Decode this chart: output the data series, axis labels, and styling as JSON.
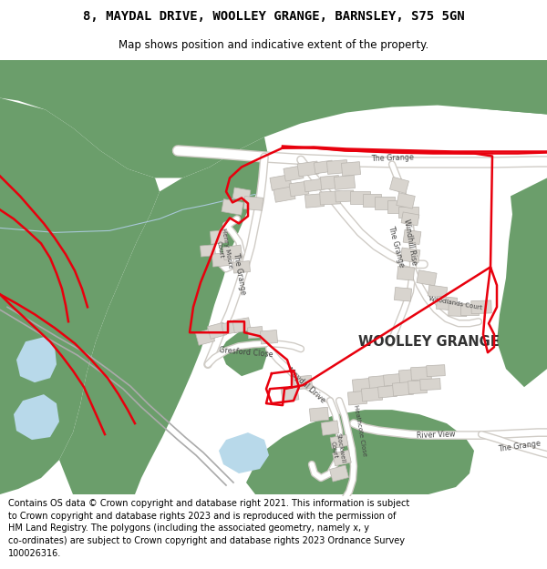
{
  "title_line1": "8, MAYDAL DRIVE, WOOLLEY GRANGE, BARNSLEY, S75 5GN",
  "title_line2": "Map shows position and indicative extent of the property.",
  "footer_text": "Contains OS data © Crown copyright and database right 2021. This information is subject\nto Crown copyright and database rights 2023 and is reproduced with the permission of\nHM Land Registry. The polygons (including the associated geometry, namely x, y\nco-ordinates) are subject to Crown copyright and database rights 2023 Ordnance Survey\n100026316.",
  "bg_color": "#ffffff",
  "map_bg": "#f5f3ef",
  "green_color": "#6b9e6b",
  "blue_color": "#b8d9ea",
  "road_color": "#ffffff",
  "road_edge": "#d0ccc6",
  "building_color": "#d8d4ce",
  "building_edge": "#b8b4ae",
  "red_color": "#e8000d",
  "text_color": "#000000",
  "label_color": "#444444"
}
